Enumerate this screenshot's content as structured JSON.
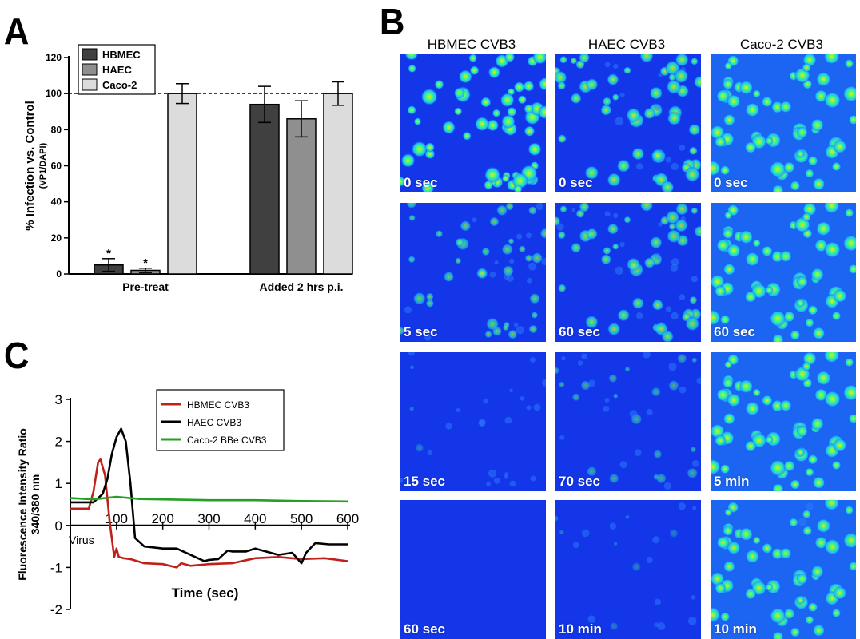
{
  "panels": {
    "a": "A",
    "b": "B",
    "c": "C"
  },
  "chart_data": [
    {
      "type": "bar",
      "ylabel": "% Infection vs. Control",
      "ylabel2": "(VP1/DAPI)",
      "ylim": [
        0,
        120
      ],
      "yticks": [
        0,
        20,
        40,
        60,
        80,
        100,
        120
      ],
      "reference_line": 100,
      "categories": [
        "Pre-treat",
        "Added 2 hrs p.i."
      ],
      "series": [
        {
          "name": "HBMEC",
          "values": [
            5,
            94
          ],
          "errors": [
            3.5,
            10
          ],
          "color": "#404040",
          "sig": [
            "*",
            ""
          ]
        },
        {
          "name": "HAEC",
          "values": [
            2,
            86
          ],
          "errors": [
            1.2,
            10
          ],
          "color": "#8f8f8f",
          "sig": [
            "*",
            ""
          ]
        },
        {
          "name": "Caco-2",
          "values": [
            100,
            100
          ],
          "errors": [
            5.5,
            6.5
          ],
          "color": "#dcdcdc",
          "sig": [
            "",
            ""
          ]
        }
      ],
      "legend": "top-left",
      "grid": false
    },
    {
      "type": "line",
      "xlabel": "Time (sec)",
      "ylabel": "Fluorescence Intensity Ratio",
      "ylabel2": "340/380 nm",
      "xlim": [
        0,
        600
      ],
      "ylim": [
        -2,
        3
      ],
      "xticks": [
        100,
        200,
        300,
        400,
        500,
        600
      ],
      "yticks": [
        -2,
        -1,
        0,
        1,
        2,
        3
      ],
      "annotation": "Virus",
      "legend": "top-right",
      "grid": false,
      "series": [
        {
          "name": "HBMEC CVB3",
          "color": "#c0201a",
          "x": [
            0,
            20,
            40,
            50,
            60,
            65,
            75,
            85,
            95,
            100,
            105,
            115,
            130,
            160,
            200,
            230,
            240,
            260,
            300,
            350,
            400,
            450,
            500,
            550,
            600
          ],
          "y": [
            0.4,
            0.4,
            0.4,
            0.8,
            1.5,
            1.57,
            1.2,
            0.1,
            -0.75,
            -0.55,
            -0.75,
            -0.78,
            -0.8,
            -0.9,
            -0.92,
            -1.0,
            -0.9,
            -0.96,
            -0.92,
            -0.9,
            -0.78,
            -0.75,
            -0.8,
            -0.78,
            -0.85
          ]
        },
        {
          "name": "HAEC CVB3",
          "color": "#000000",
          "x": [
            0,
            30,
            50,
            70,
            80,
            90,
            100,
            110,
            120,
            130,
            140,
            160,
            200,
            230,
            260,
            290,
            300,
            320,
            340,
            350,
            380,
            400,
            450,
            480,
            500,
            510,
            530,
            560,
            600
          ],
          "y": [
            0.55,
            0.55,
            0.55,
            0.75,
            1.1,
            1.7,
            2.1,
            2.3,
            2.0,
            1.0,
            -0.3,
            -0.5,
            -0.55,
            -0.55,
            -0.7,
            -0.85,
            -0.82,
            -0.8,
            -0.6,
            -0.62,
            -0.62,
            -0.55,
            -0.7,
            -0.65,
            -0.9,
            -0.65,
            -0.42,
            -0.45,
            -0.45
          ]
        },
        {
          "name": "Caco-2 BBe CVB3",
          "color": "#24a024",
          "x": [
            0,
            50,
            100,
            150,
            200,
            300,
            400,
            500,
            600
          ],
          "y": [
            0.65,
            0.62,
            0.68,
            0.63,
            0.62,
            0.6,
            0.6,
            0.58,
            0.57
          ]
        }
      ]
    }
  ],
  "micrographs": {
    "columns": [
      "HBMEC CVB3",
      "HAEC CVB3",
      "Caco-2 CVB3"
    ],
    "rows": [
      [
        "0 sec",
        "0 sec",
        "0 sec"
      ],
      [
        "5 sec",
        "60 sec",
        "60 sec"
      ],
      [
        "15 sec",
        "70 sec",
        "5 min"
      ],
      [
        "60 sec",
        "10 min",
        "10 min"
      ]
    ],
    "intensity": [
      [
        1.0,
        0.85,
        1.0
      ],
      [
        0.6,
        0.75,
        1.0
      ],
      [
        0.12,
        0.35,
        1.0
      ],
      [
        0.0,
        0.1,
        0.95
      ]
    ],
    "background_color": "#1236e8"
  }
}
